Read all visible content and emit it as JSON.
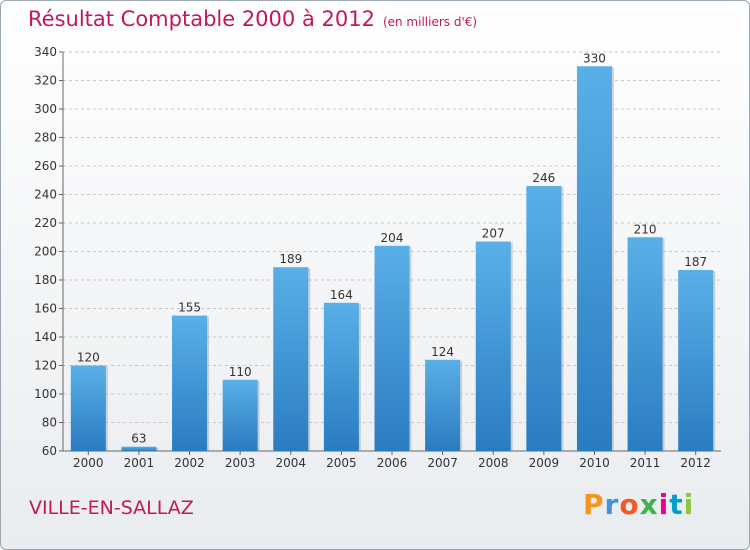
{
  "header": {
    "title": "Résultat Comptable 2000 à 2012",
    "subtitle": "(en milliers d'€)"
  },
  "footer": {
    "town": "VILLE-EN-SALLAZ",
    "brand_letters": [
      "P",
      "r",
      "o",
      "x",
      "i",
      "t",
      "i"
    ],
    "brand_colors": [
      "#f7941d",
      "#4a90d9",
      "#f15a24",
      "#39b54a",
      "#ec008c",
      "#00a0c6",
      "#8dc63f"
    ]
  },
  "chart_data": {
    "type": "bar",
    "title": "Résultat Comptable 2000 à 2012",
    "subtitle": "(en milliers d'€)",
    "categories": [
      "2000",
      "2001",
      "2002",
      "2003",
      "2004",
      "2005",
      "2006",
      "2007",
      "2008",
      "2009",
      "2010",
      "2011",
      "2012"
    ],
    "values": [
      120,
      63,
      155,
      110,
      189,
      164,
      204,
      124,
      207,
      246,
      330,
      210,
      187
    ],
    "value_labels": [
      "120",
      "63",
      "155",
      "110",
      "189",
      "164",
      "204",
      "124",
      "207",
      "246",
      "330",
      "210",
      "187"
    ],
    "ylim": [
      60,
      340
    ],
    "yticks": [
      60,
      80,
      100,
      120,
      140,
      160,
      180,
      200,
      220,
      240,
      260,
      280,
      300,
      320,
      340
    ],
    "ytick_labels": [
      "60",
      "80",
      "100",
      "120",
      "140",
      "160",
      "180",
      "200",
      "220",
      "240",
      "260",
      "280",
      "300",
      "320",
      "340"
    ],
    "xlabel": "",
    "ylabel": "",
    "grid": true,
    "bar_color_top": "#5aafe8",
    "bar_color_bottom": "#2a7cc0"
  }
}
